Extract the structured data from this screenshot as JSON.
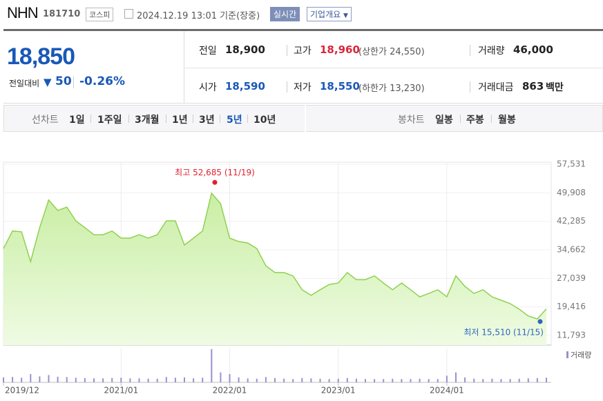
{
  "header": {
    "name": "NHN",
    "code": "181710",
    "market": "코스피",
    "datetime": "2024.12.19 13:01 기준(장중)",
    "realtime": "실시간",
    "company": "기업개요"
  },
  "price": {
    "current": "18,850",
    "change_label": "전일대비",
    "change": "50",
    "change_pct": "-0.26%"
  },
  "info": {
    "rows": [
      [
        {
          "label": "전일",
          "value": "18,900"
        },
        {
          "label": "고가",
          "value": "18,960",
          "note": "(상한가 24,550)"
        },
        {
          "label": "거래량",
          "value": "46,000"
        }
      ],
      [
        {
          "label": "시가",
          "value": "18,590"
        },
        {
          "label": "저가",
          "value": "18,550",
          "note": "(하한가 13,230)"
        },
        {
          "label": "거래대금",
          "value": "863",
          "unit": "백만"
        }
      ]
    ]
  },
  "tabs": {
    "line_label": "선차트",
    "line": [
      "1일",
      "1주일",
      "3개월",
      "1년",
      "3년",
      "5년",
      "10년"
    ],
    "candle_label": "봉차트",
    "candle": [
      "일봉",
      "주봉",
      "월봉"
    ]
  },
  "chart_data": {
    "type": "area",
    "categories": [
      "2019/12",
      null,
      null,
      null,
      null,
      null,
      null,
      null,
      null,
      null,
      null,
      null,
      null,
      "2021/01",
      null,
      null,
      null,
      null,
      null,
      null,
      null,
      null,
      null,
      null,
      null,
      "2022/01",
      null,
      null,
      null,
      null,
      null,
      null,
      null,
      null,
      null,
      null,
      null,
      "2023/01",
      null,
      null,
      null,
      null,
      null,
      null,
      null,
      null,
      null,
      null,
      null,
      "2024/01",
      null,
      null,
      null,
      null,
      null,
      null,
      null,
      null,
      null,
      null,
      null
    ],
    "series": [
      {
        "color": "#8fd14f",
        "values": [
          35000,
          39700,
          39500,
          31500,
          40600,
          48000,
          45200,
          46100,
          42400,
          40600,
          38700,
          38700,
          39700,
          37800,
          37800,
          38700,
          37800,
          38700,
          42400,
          42400,
          35950,
          37800,
          39700,
          49800,
          47000,
          37800,
          36900,
          36500,
          35000,
          30400,
          28600,
          28600,
          27700,
          24000,
          22500,
          24000,
          25400,
          25800,
          28600,
          26700,
          26700,
          27700,
          25800,
          24000,
          25800,
          24000,
          22100,
          23000,
          24000,
          22100,
          27700,
          24900,
          23000,
          24000,
          22100,
          21200,
          20300,
          18800,
          17000,
          16200,
          18900
        ]
      }
    ],
    "ylim": [
      11793,
      57531
    ],
    "yticks": [
      {
        "value": 11793,
        "label": "11,793"
      },
      {
        "value": 19416,
        "label": "19,416"
      },
      {
        "value": 27039,
        "label": "27,039"
      },
      {
        "value": 34662,
        "label": "34,662"
      },
      {
        "value": 42285,
        "label": "42,285"
      },
      {
        "value": 49908,
        "label": "49,908"
      },
      {
        "value": 57531,
        "label": "57,531"
      }
    ],
    "grid": true,
    "annotations": [
      {
        "text": "최고 52,685 (11/19)",
        "value": 52685,
        "color": "#e0212e"
      },
      {
        "text": "최저 15,510 (11/15)",
        "value": 15510,
        "color": "#2f66c0"
      }
    ],
    "volume": {
      "name": "거래량",
      "color": "#9b8fd0",
      "ylim": [
        0,
        1100000
      ],
      "values": [
        150000,
        160000,
        140000,
        250000,
        180000,
        220000,
        170000,
        160000,
        140000,
        130000,
        120000,
        120000,
        130000,
        140000,
        120000,
        120000,
        110000,
        110000,
        160000,
        140000,
        150000,
        120000,
        140000,
        1000000,
        300000,
        250000,
        150000,
        120000,
        110000,
        160000,
        130000,
        110000,
        100000,
        130000,
        120000,
        110000,
        100000,
        110000,
        130000,
        110000,
        100000,
        100000,
        100000,
        110000,
        100000,
        100000,
        110000,
        100000,
        100000,
        200000,
        300000,
        150000,
        110000,
        100000,
        110000,
        100000,
        100000,
        110000,
        120000,
        130000,
        140000
      ]
    }
  }
}
